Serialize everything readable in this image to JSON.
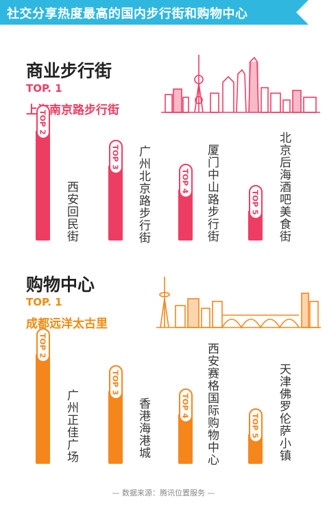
{
  "header": {
    "title": "社交分享热度最高的国内步行街和购物中心"
  },
  "sections": [
    {
      "title": "商业步行街",
      "top1_label": "TOP. 1",
      "top1_name": "上海南京路步行街"
    },
    {
      "title": "购物中心",
      "top1_label": "TOP. 1",
      "top1_name": "成都远洋太古里"
    }
  ],
  "chart_data": [
    {
      "type": "bar",
      "title": "商业步行街",
      "categories": [
        "西安回民街",
        "广州北京路步行街",
        "厦门中山路步行街",
        "北京后海酒吧美食街"
      ],
      "ranks": [
        "TOP 2",
        "TOP 3",
        "TOP 4",
        "TOP 5"
      ],
      "values": [
        100,
        68,
        46,
        27
      ],
      "value_scale": "relative bar height, TOP 2 = 100"
    },
    {
      "type": "bar",
      "title": "购物中心",
      "categories": [
        "广州正佳广场",
        "香港海港城",
        "西安赛格国际购物中心",
        "天津佛罗伦萨小镇"
      ],
      "ranks": [
        "TOP 2",
        "TOP 3",
        "TOP 4",
        "TOP 5"
      ],
      "values": [
        100,
        66,
        45,
        27
      ],
      "value_scale": "relative bar height, TOP 2 = 100"
    }
  ],
  "colors": {
    "banner": "#2fb7df",
    "pink": "#ee3d63",
    "orange": "#f5861b"
  },
  "footer": {
    "source": "— 数据来源：腾讯位置服务 —"
  }
}
